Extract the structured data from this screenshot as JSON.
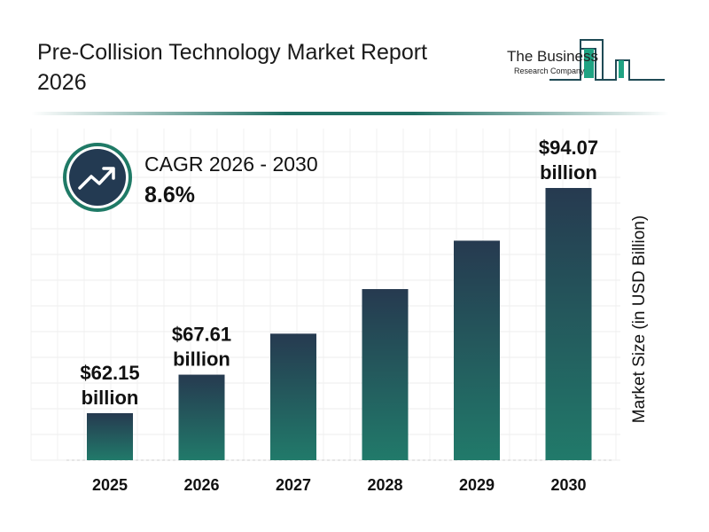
{
  "header": {
    "title": "Pre-Collision Technology Market Report 2026"
  },
  "logo": {
    "line1": "The Business",
    "line2": "Research Company"
  },
  "cagr": {
    "label": "CAGR 2026 - 2030",
    "value": "8.6%",
    "icon": "trending-up-icon"
  },
  "colors": {
    "bar_top": "#263a50",
    "bar_bottom": "#217a6a",
    "accent": "#1f7a66",
    "icon_bg": "#233a52"
  },
  "chart_data": {
    "type": "bar",
    "categories": [
      "2025",
      "2026",
      "2027",
      "2028",
      "2029",
      "2030"
    ],
    "values": [
      62.15,
      67.61,
      73.42,
      79.74,
      86.6,
      94.07
    ],
    "data_labels": [
      "$62.15\nbillion",
      "$67.61\nbillion",
      "",
      "",
      "",
      "$94.07\nbillion"
    ],
    "ylabel": "Market Size (in USD Billion)",
    "xlabel": "",
    "grid": true
  }
}
